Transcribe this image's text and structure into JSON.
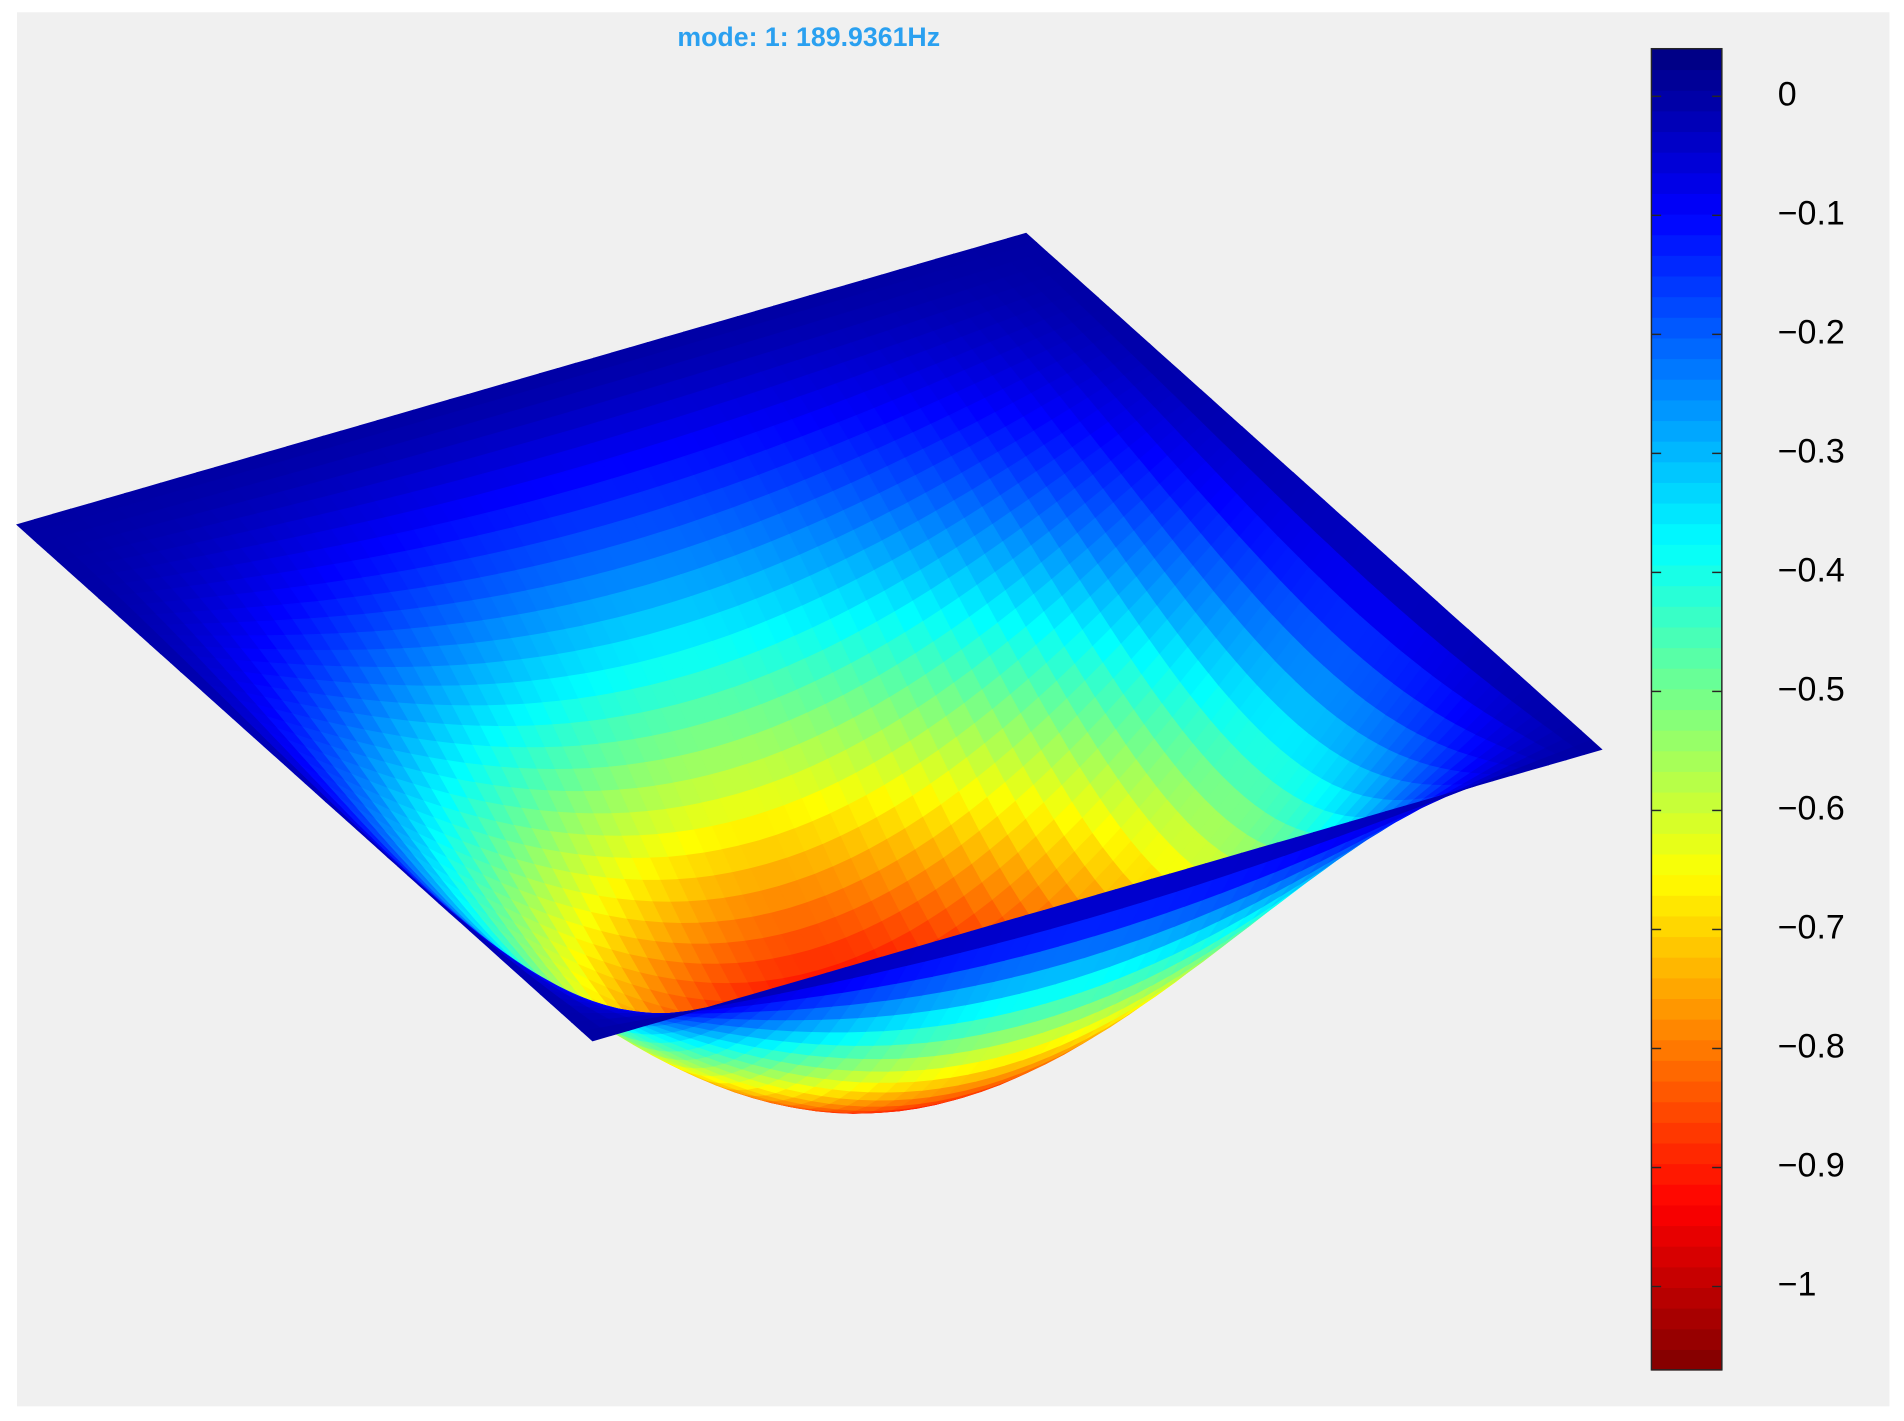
{
  "chart_data": {
    "type": "surface",
    "title": "mode: 1: 189.9361Hz",
    "colormap": "jet",
    "colormap_reversed": true,
    "clim": [
      -1.07,
      0.04
    ],
    "cticks": [
      0,
      {
        "value": -0.1,
        "label": "−0.1"
      },
      {
        "value": -0.2,
        "label": "−0.2"
      },
      {
        "value": -0.3,
        "label": "−0.3"
      },
      {
        "value": -0.4,
        "label": "−0.4"
      },
      {
        "value": -0.5,
        "label": "−0.5"
      },
      {
        "value": -0.6,
        "label": "−0.6"
      },
      {
        "value": -0.7,
        "label": "−0.7"
      },
      {
        "value": -0.8,
        "label": "−0.8"
      },
      {
        "value": -0.9,
        "label": "−0.9"
      },
      {
        "value": -1,
        "label": "−1"
      }
    ]
  }
}
